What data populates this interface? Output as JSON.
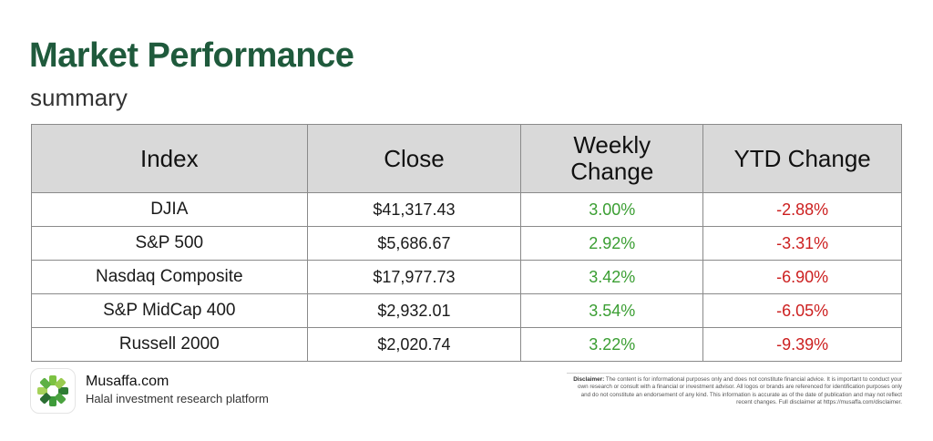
{
  "header": {
    "title": "Market Performance",
    "subtitle": "summary"
  },
  "table": {
    "columns": [
      "Index",
      "Close",
      "Weekly Change",
      "YTD Change"
    ],
    "rows": [
      {
        "index": "DJIA",
        "close": "$41,317.43",
        "weekly": "3.00%",
        "ytd": "-2.88%"
      },
      {
        "index": "S&P 500",
        "close": "$5,686.67",
        "weekly": "2.92%",
        "ytd": "-3.31%"
      },
      {
        "index": "Nasdaq Composite",
        "close": "$17,977.73",
        "weekly": "3.42%",
        "ytd": "-6.90%"
      },
      {
        "index": "S&P MidCap 400",
        "close": "$2,932.01",
        "weekly": "3.54%",
        "ytd": "-6.05%"
      },
      {
        "index": "Russell 2000",
        "close": "$2,020.74",
        "weekly": "3.22%",
        "ytd": "-9.39%"
      }
    ]
  },
  "colors": {
    "title": "#1f5a3c",
    "positive": "#3a9e32",
    "negative": "#cc1f1f",
    "header_bg": "#d9d9d9"
  },
  "footer": {
    "logo_icon": "musaffa-flower-icon",
    "brand_name": "Musaffa.com",
    "brand_tagline": "Halal investment research platform",
    "disclaimer_label": "Disclaimer:",
    "disclaimer_text": "The content is for informational purposes only and does not constitute financial advice. It is important to conduct your own research or consult with a financial or investment advisor. All logos or brands are referenced for identification purposes only and do not constitute an endorsement of any kind. This information is accurate as of the date of publication and may not reflect recent changes. Full disclaimer at https://musaffa.com/disclaimer."
  }
}
